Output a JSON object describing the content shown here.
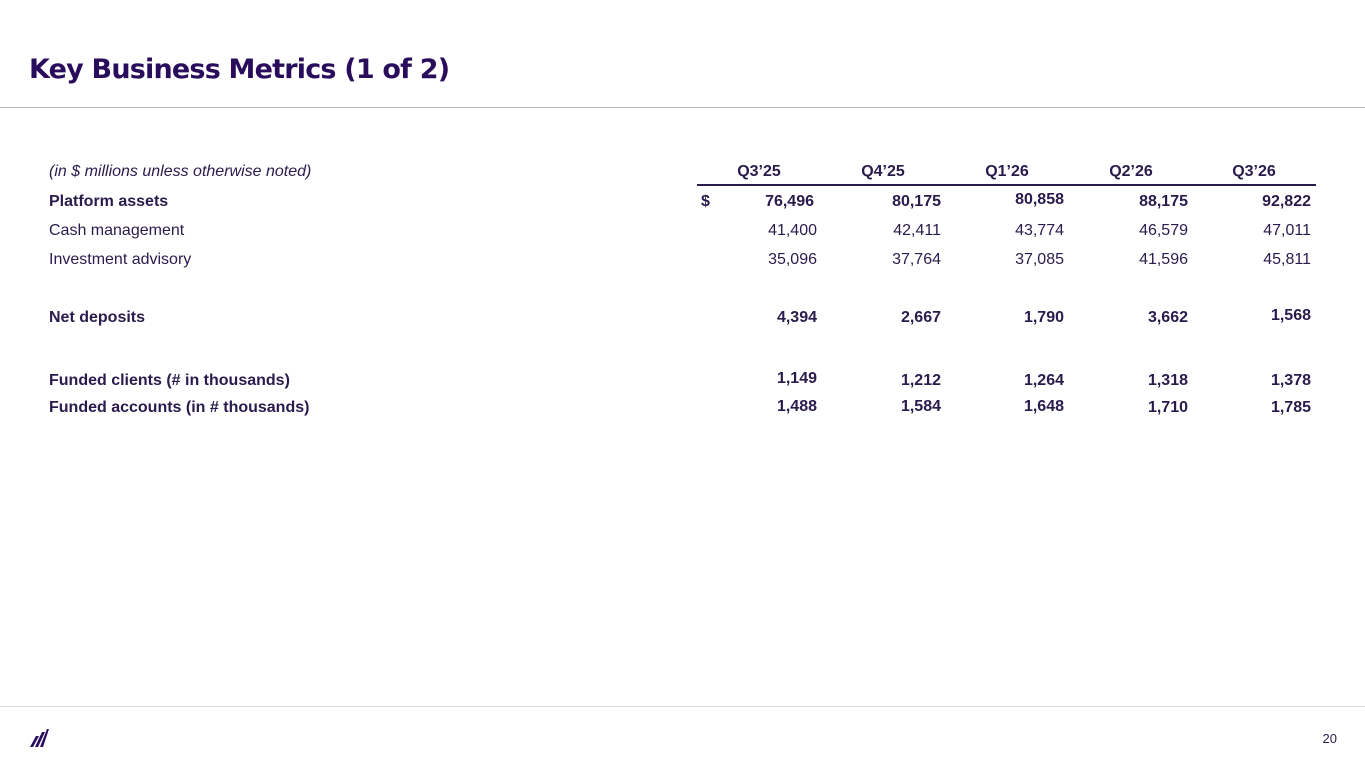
{
  "slide": {
    "title": "Key Business Metrics (1 of 2)",
    "page_number": "20",
    "logo_icon": "wealthfront-logo-icon"
  },
  "table": {
    "note": "(in $ millions unless otherwise noted)",
    "columns": [
      "Q3’25",
      "Q4’25",
      "Q1’26",
      "Q2’26",
      "Q3’26"
    ],
    "rows": [
      {
        "label": "Platform assets",
        "bold": true,
        "currency": "$",
        "values": [
          "76,496",
          "80,175",
          "80,858",
          "88,175",
          "92,822"
        ]
      },
      {
        "label": "Cash management",
        "bold": false,
        "values": [
          "41,400",
          "42,411",
          "43,774",
          "46,579",
          "47,011"
        ]
      },
      {
        "label": "Investment advisory",
        "bold": false,
        "values": [
          "35,096",
          "37,764",
          "37,085",
          "41,596",
          "45,811"
        ]
      },
      {
        "label": "Net deposits",
        "bold": true,
        "values": [
          "4,394",
          "2,667",
          "1,790",
          "3,662",
          "1,568"
        ]
      },
      {
        "label": "Funded clients (# in thousands)",
        "bold": true,
        "values": [
          "1,149",
          "1,212",
          "1,264",
          "1,318",
          "1,378"
        ]
      },
      {
        "label": "Funded accounts (in # thousands)",
        "bold": true,
        "values": [
          "1,488",
          "1,584",
          "1,648",
          "1,710",
          "1,785"
        ]
      }
    ]
  }
}
